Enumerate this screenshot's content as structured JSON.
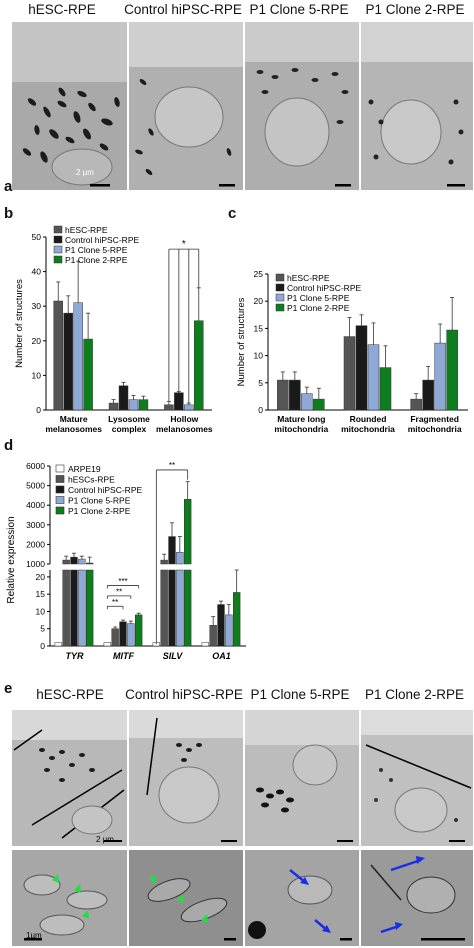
{
  "panels": {
    "a": {
      "label": "a",
      "columns": [
        "hESC-RPE",
        "Control hiPSC-RPE",
        "P1 Clone 5-RPE",
        "P1 Clone 2-RPE"
      ],
      "scale": "2 µm"
    },
    "e": {
      "label": "e",
      "columns": [
        "hESC-RPE",
        "Control hiPSC-RPE",
        "P1 Clone 5-RPE",
        "P1 Clone 2-RPE"
      ],
      "scale_top": "2 µm",
      "scale_bottom": "1µm"
    }
  },
  "colors": {
    "hesc": "#555555",
    "control": "#1a1a1a",
    "clone5": "#8fa9d6",
    "clone2": "#0d7d1e",
    "arpe19": "#ffffff",
    "green_arrow": "#22dd44",
    "blue_arrow": "#1a2ee6"
  },
  "chart_data": [
    {
      "id": "b",
      "label": "b",
      "type": "bar",
      "ylabel": "Number of structures",
      "ylim": [
        0,
        50
      ],
      "yticks": [
        0,
        10,
        20,
        30,
        40,
        50
      ],
      "categories": [
        "Mature melanosomes",
        "Lysosome complex",
        "Hollow melanosomes"
      ],
      "series": [
        {
          "name": "hESC-RPE",
          "values": [
            31.5,
            2,
            1.5
          ],
          "errors": [
            5.5,
            1,
            1
          ]
        },
        {
          "name": "Control hiPSC-RPE",
          "values": [
            28,
            7,
            5
          ],
          "errors": [
            5,
            1,
            0.3
          ]
        },
        {
          "name": "P1 Clone 5-RPE",
          "values": [
            31,
            3,
            1.5
          ],
          "errors": [
            12,
            1.2,
            0.5
          ]
        },
        {
          "name": "P1 Clone 2-RPE",
          "values": [
            20.5,
            3,
            25.8
          ],
          "errors": [
            7.5,
            1,
            9.5
          ]
        }
      ],
      "significance": [
        "*"
      ]
    },
    {
      "id": "c",
      "label": "c",
      "type": "bar",
      "ylabel": "Number of structures",
      "ylim": [
        0,
        25
      ],
      "yticks": [
        0,
        5,
        10,
        15,
        20,
        25
      ],
      "categories": [
        "Mature long mitochondria",
        "Rounded mitochondria",
        "Fragmented mitochondria"
      ],
      "series": [
        {
          "name": "hESC-RPE",
          "values": [
            5.5,
            13.5,
            2
          ],
          "errors": [
            1.5,
            3.5,
            1
          ]
        },
        {
          "name": "Control hiPSC-RPE",
          "values": [
            5.5,
            15.5,
            5.5
          ],
          "errors": [
            1.5,
            2,
            2.5
          ]
        },
        {
          "name": "P1 Clone 5-RPE",
          "values": [
            3,
            12,
            12.3
          ],
          "errors": [
            1.2,
            4,
            3.5
          ]
        },
        {
          "name": "P1 Clone 2-RPE",
          "values": [
            2,
            7.8,
            14.7
          ],
          "errors": [
            2,
            4,
            6
          ]
        }
      ]
    },
    {
      "id": "d",
      "label": "d",
      "type": "bar",
      "ylabel": "Relative expression",
      "ylim": [
        0,
        6000
      ],
      "broken_axis": true,
      "yticks_upper": [
        1000,
        2000,
        3000,
        4000,
        5000,
        6000
      ],
      "yticks_lower": [
        0,
        5,
        10,
        15,
        20
      ],
      "categories": [
        "TYR",
        "MITF",
        "SILV",
        "OA1"
      ],
      "series": [
        {
          "name": "ARPE19",
          "values": [
            1,
            1,
            1,
            1
          ],
          "errors": [
            0,
            0,
            0,
            0
          ]
        },
        {
          "name": "hESCs-RPE",
          "values": [
            1200,
            5,
            1200,
            6
          ],
          "errors": [
            200,
            0.5,
            300,
            2.5
          ]
        },
        {
          "name": "Control hiPSC-RPE",
          "values": [
            1350,
            7,
            2400,
            12
          ],
          "errors": [
            200,
            0.5,
            700,
            1
          ]
        },
        {
          "name": "P1 Clone 5-RPE",
          "values": [
            1250,
            6.5,
            1600,
            9
          ],
          "errors": [
            150,
            0.7,
            800,
            3
          ]
        },
        {
          "name": "P1 Clone 2-RPE",
          "values": [
            1050,
            9,
            4300,
            15.5
          ],
          "errors": [
            300,
            0.5,
            900,
            8
          ]
        }
      ],
      "significance": [
        "***",
        "**",
        "**",
        "**"
      ]
    }
  ]
}
